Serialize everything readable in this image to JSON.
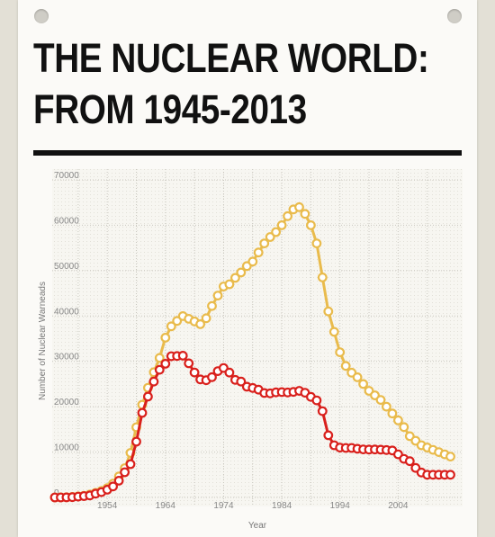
{
  "page": {
    "title_line1": "THE NUCLEAR WORLD:",
    "title_line2": "FROM 1945-2013"
  },
  "chart_data": {
    "type": "line",
    "title": "THE NUCLEAR WORLD: FROM 1945-2013",
    "xlabel": "Year",
    "ylabel": "Number of Nuclear Warneads",
    "xlim": [
      1945,
      2014
    ],
    "ylim": [
      0,
      70000
    ],
    "x_ticks": [
      "1954",
      "1964",
      "1974",
      "1984",
      "1994",
      "2004"
    ],
    "y_ticks": [
      "0",
      "10000",
      "20000",
      "30000",
      "40000",
      "50000",
      "60000",
      "70000"
    ],
    "grid": true,
    "x": [
      1945,
      1946,
      1947,
      1948,
      1949,
      1950,
      1951,
      1952,
      1953,
      1954,
      1955,
      1956,
      1957,
      1958,
      1959,
      1960,
      1961,
      1962,
      1963,
      1964,
      1965,
      1966,
      1967,
      1968,
      1969,
      1970,
      1971,
      1972,
      1973,
      1974,
      1975,
      1976,
      1977,
      1978,
      1979,
      1980,
      1981,
      1982,
      1983,
      1984,
      1985,
      1986,
      1987,
      1988,
      1989,
      1990,
      1991,
      1992,
      1993,
      1994,
      1995,
      1996,
      1997,
      1998,
      1999,
      2000,
      2001,
      2002,
      2003,
      2004,
      2005,
      2006,
      2007,
      2008,
      2009,
      2010,
      2011,
      2012,
      2013
    ],
    "series": [
      {
        "color": "#e9bb4c",
        "values": [
          6,
          11,
          32,
          110,
          235,
          369,
          640,
          1005,
          1436,
          2063,
          3057,
          4618,
          6444,
          9822,
          15468,
          20434,
          24173,
          27609,
          30751,
          35211,
          37726,
          38900,
          39980,
          39391,
          38800,
          38200,
          39500,
          42200,
          44500,
          46500,
          47000,
          48400,
          49600,
          51000,
          52000,
          54000,
          56000,
          57400,
          58500,
          60000,
          62000,
          63500,
          64000,
          62500,
          60000,
          56000,
          48500,
          41000,
          36500,
          32000,
          29000,
          27500,
          26500,
          25000,
          23500,
          22500,
          21500,
          20000,
          18500,
          17000,
          15500,
          13500,
          12500,
          11500,
          11000,
          10500,
          10000,
          9500,
          9000
        ]
      },
      {
        "color": "#d9201c",
        "values": [
          2,
          9,
          13,
          50,
          170,
          299,
          438,
          841,
          1169,
          1703,
          2422,
          3692,
          5543,
          7345,
          12298,
          18638,
          22229,
          25540,
          28133,
          29463,
          31139,
          31175,
          31255,
          29561,
          27552,
          26008,
          25830,
          26516,
          27835,
          28537,
          27519,
          25914,
          25542,
          24418,
          24138,
          23764,
          23031,
          22937,
          23154,
          23228,
          23135,
          23254,
          23490,
          23077,
          22174,
          21392,
          19008,
          13708,
          11511,
          10979,
          10904,
          10903,
          10732,
          10598,
          10556,
          10577,
          10526,
          10457,
          10350,
          9500,
          8500,
          8000,
          6500,
          5500,
          5000,
          5000,
          5000,
          5000,
          5000
        ]
      }
    ]
  }
}
